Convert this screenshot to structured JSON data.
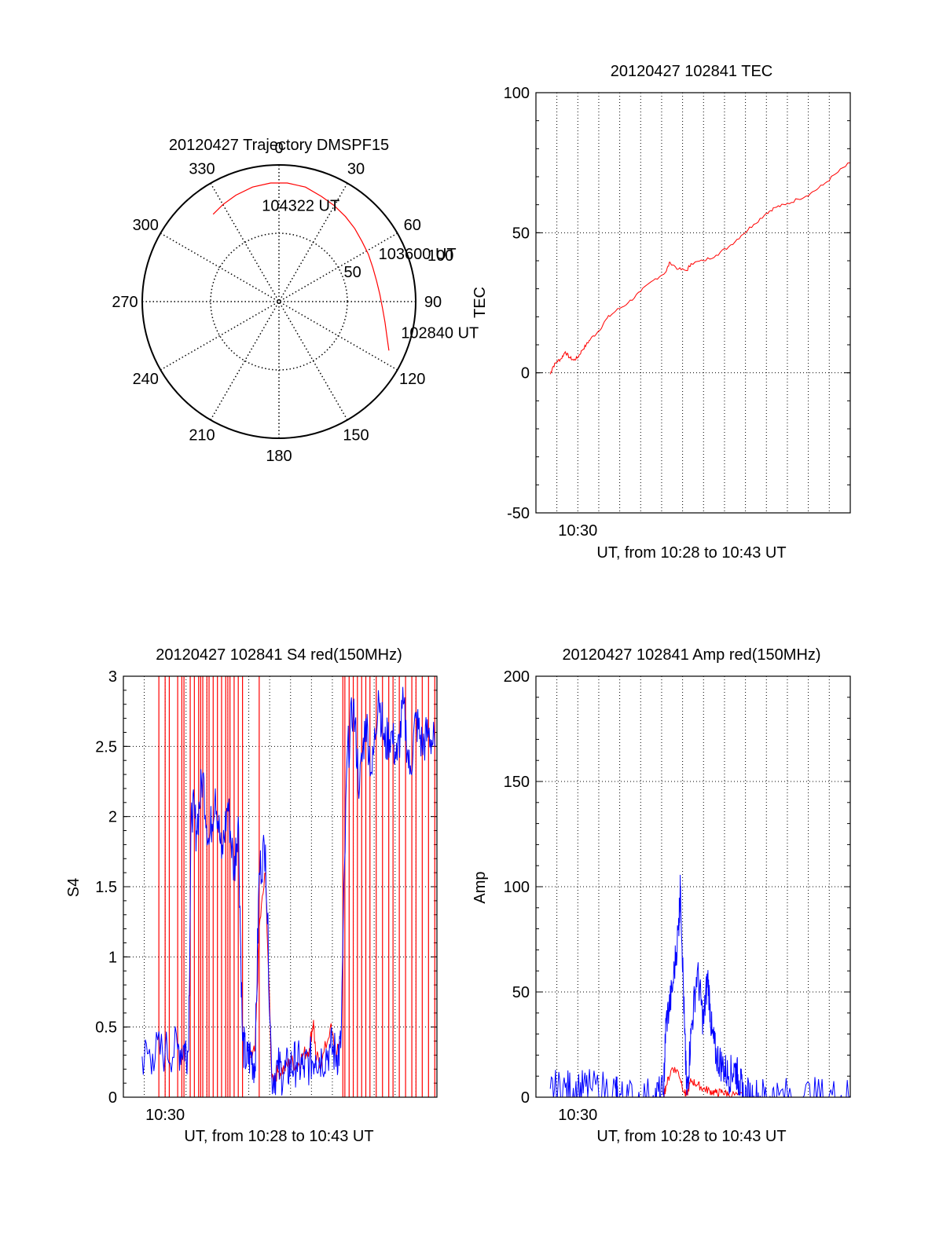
{
  "colors": {
    "background": "#ffffff",
    "axis": "#000000",
    "grid": "#000000",
    "red_series": "#ff0000",
    "blue_series": "#0000ff"
  },
  "chart_data": [
    {
      "id": "polar",
      "type": "scatter",
      "subtype": "polar-trajectory",
      "title": "20120427 Trajectory DMSPF15",
      "azimuth_labels": [
        "0",
        "30",
        "60",
        "90",
        "120",
        "150",
        "180",
        "210",
        "240",
        "270",
        "300",
        "330"
      ],
      "radial_labels": [
        "50",
        "100"
      ],
      "grid": true,
      "track": {
        "color": "#ff0000",
        "points": [
          {
            "az": 114,
            "zen": 88
          },
          {
            "az": 108,
            "zen": 83
          },
          {
            "az": 101,
            "zen": 79
          },
          {
            "az": 94,
            "zen": 76
          },
          {
            "az": 86,
            "zen": 74
          },
          {
            "az": 78,
            "zen": 73
          },
          {
            "az": 70,
            "zen": 73
          },
          {
            "az": 62,
            "zen": 74
          },
          {
            "az": 54,
            "zen": 75
          },
          {
            "az": 46,
            "zen": 77
          },
          {
            "az": 38,
            "zen": 79
          },
          {
            "az": 30,
            "zen": 81
          },
          {
            "az": 22,
            "zen": 83
          },
          {
            "az": 13,
            "zen": 86
          },
          {
            "az": 4,
            "zen": 87
          },
          {
            "az": -4,
            "zen": 87
          },
          {
            "az": -13,
            "zen": 86
          },
          {
            "az": -22,
            "zen": 84
          },
          {
            "az": -30,
            "zen": 82
          },
          {
            "az": -37,
            "zen": 80
          }
        ],
        "labels": [
          {
            "text": "102840 UT",
            "az": 104,
            "zen": 92
          },
          {
            "text": "103600 UT",
            "az": 64,
            "zen": 81
          },
          {
            "text": "104322 UT",
            "az": -10,
            "zen": 72
          }
        ]
      }
    },
    {
      "id": "tec",
      "type": "line",
      "title": "20120427 102841 TEC",
      "xlabel": "UT, from 10:28 to 10:43 UT",
      "ylabel": "TEC",
      "xlim": [
        10.4667,
        10.7167
      ],
      "ylim": [
        -50,
        100
      ],
      "yticks": [
        "-50",
        "0",
        "50",
        "100"
      ],
      "xtick_labels": [
        {
          "value": 10.5,
          "text": "10:30"
        }
      ],
      "grid": true,
      "series": [
        {
          "color": "#ff0000",
          "x": [
            10.4781,
            10.48,
            10.4833,
            10.4867,
            10.49,
            10.4933,
            10.4967,
            10.5,
            10.5033,
            10.5067,
            10.51,
            10.5167,
            10.5233,
            10.53,
            10.54,
            10.55,
            10.56,
            10.57,
            10.5733,
            10.58,
            10.5867,
            10.59,
            10.6,
            10.61,
            10.62,
            10.63,
            10.64,
            10.65,
            10.6567,
            10.665,
            10.675,
            10.685,
            10.695,
            10.705,
            10.7167
          ],
          "values": [
            -0.5,
            2.0,
            4.0,
            5.0,
            7.5,
            5.5,
            4.5,
            5.5,
            8.0,
            10.0,
            12.0,
            15.0,
            19.5,
            22.0,
            25.0,
            29.0,
            33.0,
            36.0,
            39.5,
            37.0,
            36.5,
            39.0,
            40.0,
            42.0,
            45.0,
            49.0,
            53.0,
            57.0,
            59.0,
            60.0,
            62.0,
            64.0,
            67.0,
            71.0,
            75.0
          ]
        }
      ]
    },
    {
      "id": "s4",
      "type": "line",
      "title": "20120427 102841 S4 red(150MHz)",
      "xlabel": "UT, from 10:28 to 10:43 UT",
      "ylabel": "S4",
      "xlim": [
        10.4667,
        10.7167
      ],
      "ylim": [
        0,
        3
      ],
      "yticks": [
        "0",
        "0.5",
        "1",
        "1.5",
        "2",
        "2.5",
        "3"
      ],
      "xtick_labels": [
        {
          "value": 10.5,
          "text": "10:30"
        }
      ],
      "grid": true,
      "series": [
        {
          "color": "#0000ff",
          "x": [
            10.4817,
            10.49,
            10.5,
            10.51,
            10.515,
            10.5185,
            10.521,
            10.525,
            10.53,
            10.535,
            10.54,
            10.545,
            10.55,
            10.555,
            10.5583,
            10.5617,
            10.565,
            10.5683,
            10.5717,
            10.575,
            10.58,
            10.585,
            10.59,
            10.595,
            10.6,
            10.605,
            10.61,
            10.615,
            10.62,
            10.625,
            10.6317,
            10.6367,
            10.64,
            10.645,
            10.65,
            10.655,
            10.66,
            10.665,
            10.67,
            10.675,
            10.68,
            10.685,
            10.69,
            10.695,
            10.7,
            10.705,
            10.71,
            10.715
          ],
          "values": [
            0.29,
            0.31,
            0.33,
            0.34,
            0.36,
            0.33,
            2.1,
            1.9,
            2.3,
            1.8,
            2.2,
            1.7,
            2.1,
            1.6,
            2.0,
            0.4,
            0.25,
            0.3,
            0.22,
            1.6,
            1.8,
            0.15,
            0.2,
            0.17,
            0.22,
            0.25,
            0.2,
            0.25,
            0.3,
            0.28,
            0.35,
            0.3,
            0.35,
            2.4,
            2.8,
            2.2,
            2.7,
            2.3,
            2.9,
            2.5,
            2.6,
            2.4,
            2.8,
            2.3,
            2.7,
            2.5,
            2.6,
            2.5
          ]
        },
        {
          "color": "#ff0000",
          "x": [
            10.5683,
            10.5717,
            10.575,
            10.58,
            10.585,
            10.59,
            10.595,
            10.6,
            10.605,
            10.61,
            10.615,
            10.6183,
            10.62,
            10.625,
            10.6317,
            10.6367,
            10.64
          ],
          "values": [
            0.28,
            0.33,
            1.2,
            1.6,
            0.14,
            0.18,
            0.2,
            0.26,
            0.22,
            0.3,
            0.35,
            0.55,
            0.28,
            0.25,
            0.5,
            0.3,
            0.4
          ]
        }
      ]
    },
    {
      "id": "amp",
      "type": "line",
      "title": "20120427 102841 Amp red(150MHz)",
      "xlabel": "UT, from 10:28 to 10:43 UT",
      "ylabel": "Amp",
      "xlim": [
        10.4667,
        10.7167
      ],
      "ylim": [
        0,
        200
      ],
      "yticks": [
        "0",
        "50",
        "100",
        "150",
        "200"
      ],
      "xtick_labels": [
        {
          "value": 10.5,
          "text": "10:30"
        }
      ],
      "grid": true,
      "series": [
        {
          "color": "#0000ff",
          "x": [
            10.4781,
            10.49,
            10.5,
            10.51,
            10.53,
            10.5317,
            10.54,
            10.56,
            10.5683,
            10.57,
            10.575,
            10.58,
            10.5817,
            10.585,
            10.5867,
            10.59,
            10.595,
            10.6,
            10.6033,
            10.6067,
            10.61,
            10.615,
            10.62,
            10.625,
            10.6283,
            10.6317,
            10.64,
            10.65,
            10.66,
            10.68,
            10.7,
            10.7167
          ],
          "values": [
            4.0,
            4.5,
            4.0,
            4.5,
            4.0,
            0.5,
            0.5,
            1.0,
            2.0,
            35.0,
            50.0,
            80.0,
            100.0,
            30.0,
            1.0,
            30.0,
            60.0,
            35.0,
            58.0,
            30.0,
            20.0,
            15.0,
            10.0,
            14.0,
            8.0,
            1.0,
            0.8,
            0.8,
            0.8,
            0.8,
            0.8,
            0.8
          ]
        },
        {
          "color": "#ff0000",
          "x": [
            10.5683,
            10.57,
            10.575,
            10.58,
            10.585,
            10.5867,
            10.59,
            10.595,
            10.6,
            10.605,
            10.61,
            10.615,
            10.62,
            10.6317
          ],
          "values": [
            0.5,
            5.0,
            14.0,
            12.0,
            2.0,
            1.0,
            8.0,
            6.0,
            4.0,
            3.0,
            2.0,
            2.5,
            1.5,
            0.5
          ]
        }
      ]
    }
  ]
}
